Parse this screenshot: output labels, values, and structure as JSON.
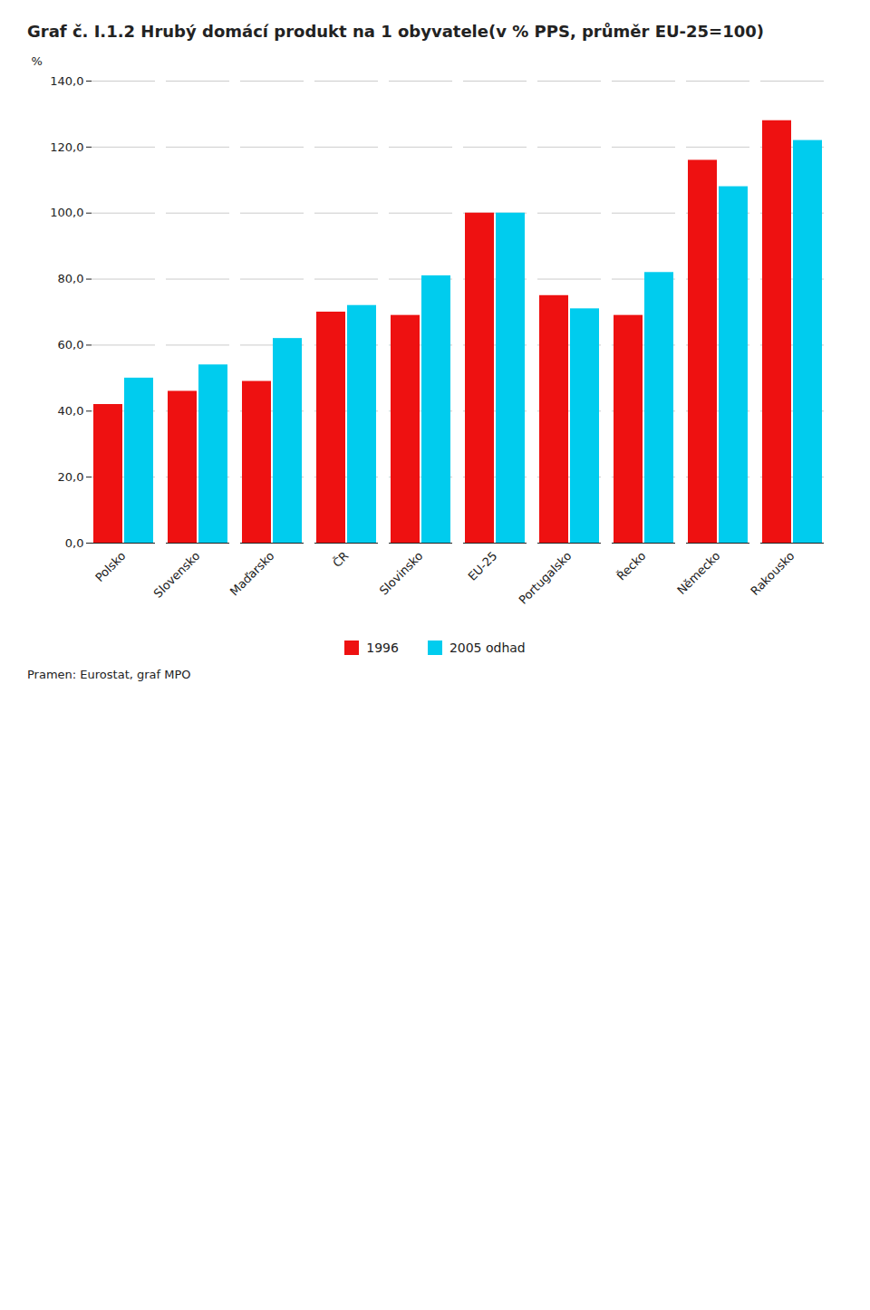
{
  "chart_data": {
    "type": "bar",
    "title": "Graf č. I.1.2  Hrubý domácí produkt na 1 obyvatele(v % PPS, průměr EU-25=100)",
    "ylabel": "%",
    "categories": [
      "Polsko",
      "Slovensko",
      "Maďarsko",
      "ČR",
      "Slovinsko",
      "EU-25",
      "Portugalsko",
      "Řecko",
      "Německo",
      "Rakousko"
    ],
    "series": [
      {
        "name": "1996",
        "color": "#ee1111",
        "values": [
          42,
          46,
          49,
          70,
          69,
          100,
          75,
          69,
          116,
          128
        ]
      },
      {
        "name": "2005 odhad",
        "color": "#00ccee",
        "values": [
          50,
          54,
          62,
          72,
          81,
          100,
          71,
          82,
          108,
          122
        ]
      }
    ],
    "ylim": [
      0,
      140
    ],
    "yticks": [
      {
        "value": 0,
        "label": "0,0"
      },
      {
        "value": 20,
        "label": "20,0"
      },
      {
        "value": 40,
        "label": "40,0"
      },
      {
        "value": 60,
        "label": "60,0"
      },
      {
        "value": 80,
        "label": "80,0"
      },
      {
        "value": 100,
        "label": "100,0"
      },
      {
        "value": 120,
        "label": "120,0"
      },
      {
        "value": 140,
        "label": "140,0"
      }
    ],
    "grid": true,
    "legend": "bottom",
    "annotations": [
      "Pramen: Eurostat, graf MPO"
    ]
  }
}
